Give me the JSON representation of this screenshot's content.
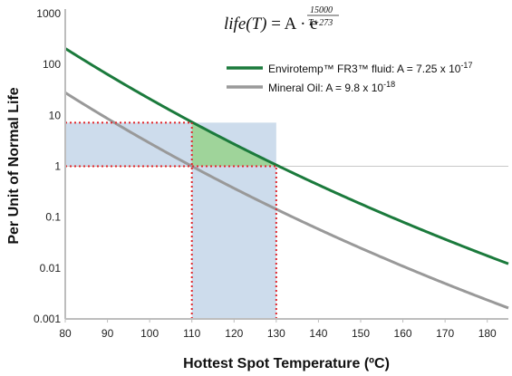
{
  "chart_data": {
    "type": "line",
    "title": "",
    "formula": {
      "lhs": "life(T)",
      "eq": " = A · e",
      "exp_num": "15000",
      "exp_den": "T+273"
    },
    "xlabel": "Hottest Spot Temperature (ºC)",
    "ylabel": "Per Unit of Normal Life",
    "xlim": [
      80,
      185
    ],
    "ylim": [
      0.001,
      1000
    ],
    "yscale": "log",
    "x_ticks": [
      80,
      90,
      100,
      110,
      120,
      130,
      140,
      150,
      160,
      170,
      180
    ],
    "y_ticks": [
      {
        "value": 0.001,
        "label": "0.001"
      },
      {
        "value": 0.01,
        "label": "0.01"
      },
      {
        "value": 0.1,
        "label": "0.1"
      },
      {
        "value": 1,
        "label": "1"
      },
      {
        "value": 10,
        "label": "10"
      },
      {
        "value": 100,
        "label": "100"
      },
      {
        "value": 1000,
        "label": "1000"
      }
    ],
    "reference_line": 1,
    "legend_position": "top-right",
    "series": [
      {
        "name": "Envirotemp™ FR3™ fluid: A = 7.25 x 10",
        "name_exp": "-17",
        "A": 7.25e-17,
        "B": 15000,
        "color": "#1b7a3c",
        "x": [
          80,
          90,
          100,
          110,
          120,
          130,
          140,
          150,
          160,
          170,
          180,
          185
        ],
        "y": [
          200.4,
          60.3,
          19.5,
          6.75,
          2.5,
          0.98,
          0.41,
          0.18,
          0.082,
          0.039,
          0.019,
          0.013
        ]
      },
      {
        "name": "Mineral Oil: A = 9.8 x 10",
        "name_exp": "-18",
        "A": 9.8e-18,
        "B": 15000,
        "color": "#999999",
        "x": [
          80,
          90,
          100,
          110,
          120,
          130,
          140,
          150,
          160,
          170,
          180,
          185
        ],
        "y": [
          27.1,
          8.15,
          2.63,
          0.91,
          0.338,
          0.133,
          0.055,
          0.024,
          0.011,
          0.0053,
          0.0026,
          0.0018
        ]
      }
    ],
    "shaded_regions": [
      {
        "type": "blue",
        "x0": 80,
        "x1": 130,
        "y0": 1,
        "y1": 7.2
      },
      {
        "type": "blue",
        "x0": 110,
        "x1": 130,
        "y0": 0.001,
        "y1": 1
      },
      {
        "type": "green",
        "between": "FR3 curve and y=1",
        "x0": 110,
        "x1": 130
      }
    ],
    "guide_lines": [
      {
        "orientation": "horizontal",
        "y": 7.2,
        "x0": 80,
        "x1": 110
      },
      {
        "orientation": "horizontal",
        "y": 1,
        "x0": 80,
        "x1": 130
      },
      {
        "orientation": "vertical",
        "x": 110,
        "y0": 0.001,
        "y1": 7.2
      },
      {
        "orientation": "vertical",
        "x": 130,
        "y0": 0.001,
        "y1": 1
      }
    ],
    "colors": {
      "shade_blue": "#cddcec",
      "shade_green": "#9fd49a",
      "guide_dotted": "#e0282e",
      "axis": "#bdbdbd"
    }
  }
}
